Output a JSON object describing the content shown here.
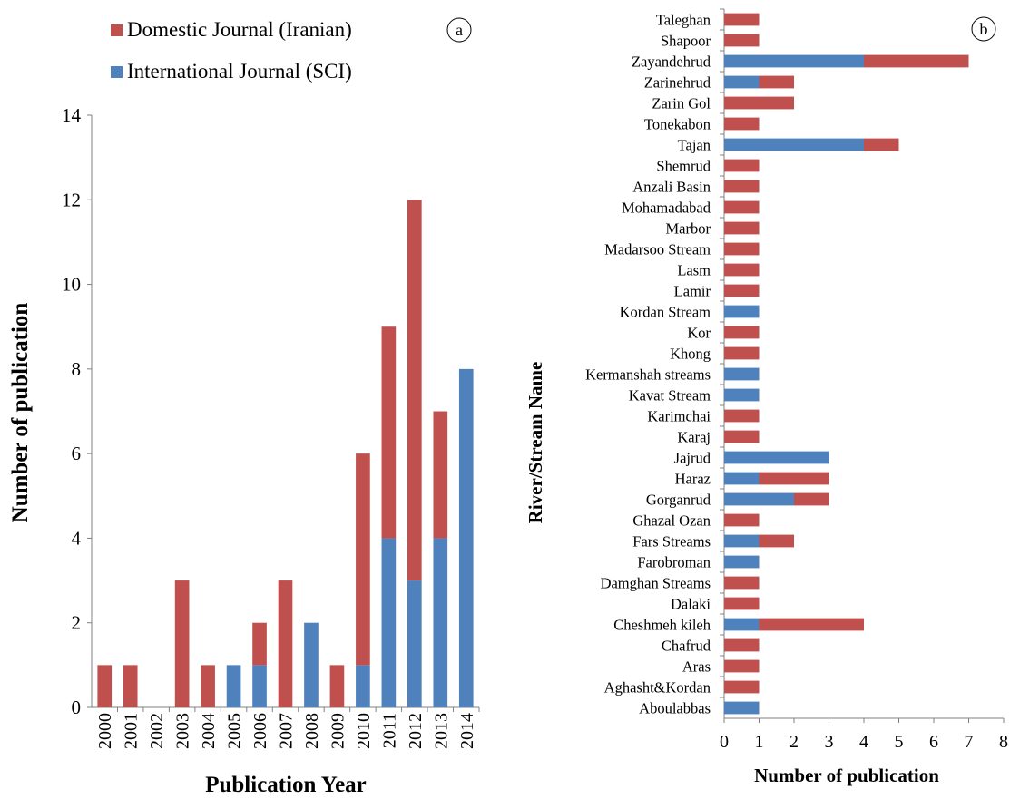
{
  "legend": [
    {
      "label": "Domestic Journal (Iranian)",
      "color": "#c0504d"
    },
    {
      "label": "International Journal (SCI)",
      "color": "#4f81bd"
    }
  ],
  "chart_data": [
    {
      "panel": "a",
      "type": "bar",
      "stacked": true,
      "orientation": "vertical",
      "xlabel": "Publication Year",
      "ylabel": "Number of publication",
      "ylim": [
        0,
        14
      ],
      "yticks": [
        0,
        2,
        4,
        6,
        8,
        10,
        12,
        14
      ],
      "grid": false,
      "legend_position": "top",
      "categories": [
        "2000",
        "2001",
        "2002",
        "2003",
        "2004",
        "2005",
        "2006",
        "2007",
        "2008",
        "2009",
        "2010",
        "2011",
        "2012",
        "2013",
        "2014"
      ],
      "series": [
        {
          "name": "International Journal (SCI)",
          "color": "#4f81bd",
          "values": [
            0,
            0,
            0,
            0,
            0,
            1,
            1,
            0,
            2,
            0,
            1,
            4,
            3,
            4,
            8
          ]
        },
        {
          "name": "Domestic Journal (Iranian)",
          "color": "#c0504d",
          "values": [
            1,
            1,
            0,
            3,
            1,
            0,
            1,
            3,
            0,
            1,
            5,
            5,
            9,
            3,
            0
          ]
        }
      ]
    },
    {
      "panel": "b",
      "type": "bar",
      "stacked": true,
      "orientation": "horizontal",
      "xlabel": "Number of publication",
      "ylabel": "River/Stream Name",
      "xlim": [
        0,
        8
      ],
      "xticks": [
        0,
        1,
        2,
        3,
        4,
        5,
        6,
        7,
        8
      ],
      "grid": false,
      "categories": [
        "Taleghan",
        "Shapoor",
        "Zayandehrud",
        "Zarinehrud",
        "Zarin Gol",
        "Tonekabon",
        "Tajan",
        "Shemrud",
        "Anzali Basin",
        "Mohamadabad",
        "Marbor",
        "Madarsoo Stream",
        "Lasm",
        "Lamir",
        "Kordan Stream",
        "Kor",
        "Khong",
        "Kermanshah streams",
        "Kavat Stream",
        "Karimchai",
        "Karaj",
        "Jajrud",
        "Haraz",
        "Gorganrud",
        "Ghazal Ozan",
        "Fars Streams",
        "Farobroman",
        "Damghan Streams",
        "Dalaki",
        "Cheshmeh kileh",
        "Chafrud",
        "Aras",
        "Aghasht&Kordan",
        "Aboulabbas"
      ],
      "series": [
        {
          "name": "International Journal (SCI)",
          "color": "#4f81bd",
          "values": [
            0,
            0,
            4,
            1,
            0,
            0,
            4,
            0,
            0,
            0,
            0,
            0,
            0,
            0,
            1,
            0,
            0,
            1,
            1,
            0,
            0,
            3,
            1,
            2,
            0,
            1,
            1,
            0,
            0,
            1,
            0,
            0,
            0,
            1
          ]
        },
        {
          "name": "Domestic Journal (Iranian)",
          "color": "#c0504d",
          "values": [
            1,
            1,
            3,
            1,
            2,
            1,
            1,
            1,
            1,
            1,
            1,
            1,
            1,
            1,
            0,
            1,
            1,
            0,
            0,
            1,
            1,
            0,
            2,
            1,
            1,
            1,
            0,
            1,
            1,
            3,
            1,
            1,
            1,
            0
          ]
        }
      ]
    }
  ]
}
